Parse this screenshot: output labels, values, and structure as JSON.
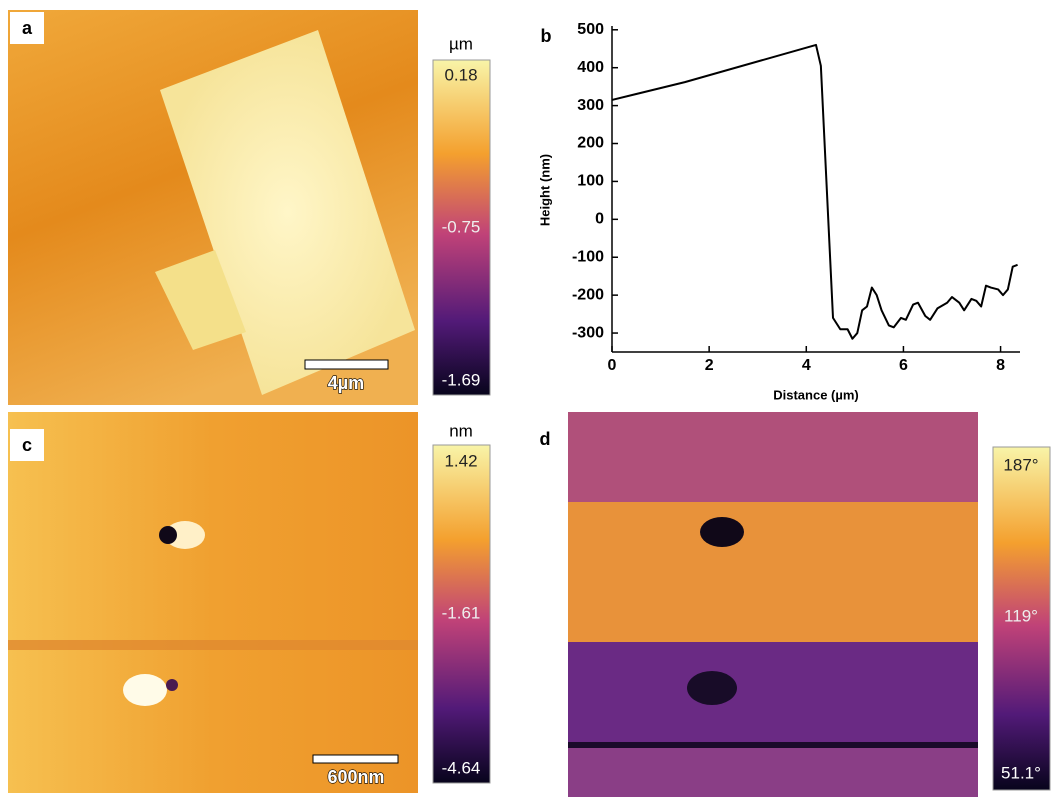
{
  "images": [
    {
      "label": "a",
      "unit": "µm",
      "colorbar": [
        "0.18",
        "-0.75",
        "-1.69"
      ],
      "scale_bar": "4µm"
    },
    {
      "label": "c",
      "unit": "nm",
      "colorbar": [
        "1.42",
        "-1.61",
        "-4.64"
      ],
      "scale_bar": "600nm"
    },
    {
      "label": "d",
      "colorbar": [
        "187°",
        "119°",
        "51.1°"
      ]
    }
  ],
  "chart_data": {
    "type": "line",
    "panel_label": "b",
    "x_label": "Distance (µm)",
    "y_label": "Height (nm)",
    "x": [
      0,
      1.5,
      4.2,
      4.3,
      4.55,
      4.7,
      4.85,
      4.95,
      5.05,
      5.15,
      5.25,
      5.35,
      5.45,
      5.55,
      5.7,
      5.8,
      5.95,
      6.05,
      6.2,
      6.3,
      6.45,
      6.55,
      6.7,
      6.9,
      7.0,
      7.15,
      7.25,
      7.4,
      7.5,
      7.6,
      7.7,
      7.8,
      7.95,
      8.05,
      8.15,
      8.25,
      8.35
    ],
    "values": [
      315,
      362,
      460,
      405,
      -260,
      -290,
      -290,
      -315,
      -300,
      -240,
      -230,
      -180,
      -200,
      -240,
      -280,
      -285,
      -260,
      -265,
      -225,
      -220,
      -255,
      -265,
      -235,
      -220,
      -205,
      -220,
      -240,
      -210,
      -215,
      -230,
      -175,
      -180,
      -185,
      -200,
      -185,
      -125,
      -120
    ],
    "color": "#000000",
    "xlim": [
      0,
      8.4
    ],
    "xticks": [
      0,
      2,
      4,
      6,
      8
    ],
    "ylim": [
      -350,
      510
    ],
    "yticks": [
      -300,
      -200,
      -100,
      0,
      100,
      200,
      300,
      400,
      500
    ]
  }
}
